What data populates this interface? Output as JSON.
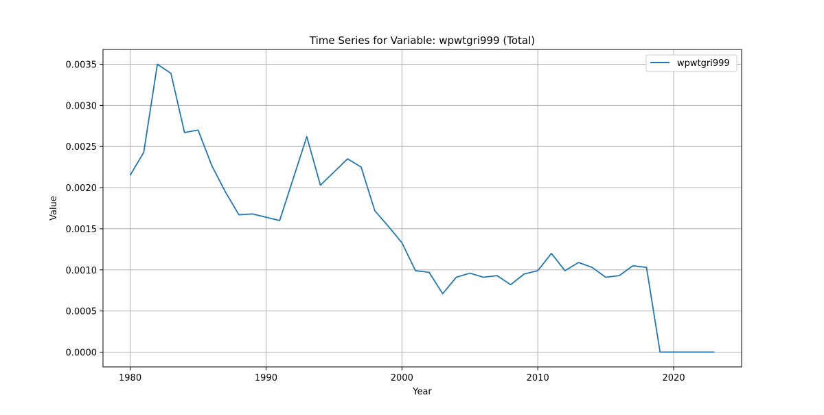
{
  "chart_data": {
    "type": "line",
    "title": "Time Series for Variable: wpwtgri999 (Total)",
    "xlabel": "Year",
    "ylabel": "Value",
    "xlim": [
      1978,
      2025
    ],
    "ylim": [
      -0.00018,
      0.00368
    ],
    "x_ticks": [
      1980,
      1990,
      2000,
      2010,
      2020
    ],
    "x_tick_labels": [
      "1980",
      "1990",
      "2000",
      "2010",
      "2020"
    ],
    "y_ticks": [
      0.0,
      0.0005,
      0.001,
      0.0015,
      0.002,
      0.0025,
      0.003,
      0.0035
    ],
    "y_tick_labels": [
      "0.0000",
      "0.0005",
      "0.0010",
      "0.0015",
      "0.0020",
      "0.0025",
      "0.0030",
      "0.0035"
    ],
    "grid": true,
    "legend_position": "top-right",
    "series": [
      {
        "name": "wpwtgri999",
        "color": "#1f77b4",
        "x": [
          1980,
          1981,
          1982,
          1983,
          1984,
          1985,
          1986,
          1987,
          1988,
          1989,
          1990,
          1991,
          1992,
          1993,
          1994,
          1995,
          1996,
          1997,
          1998,
          1999,
          2000,
          2001,
          2002,
          2003,
          2004,
          2005,
          2006,
          2007,
          2008,
          2009,
          2010,
          2011,
          2012,
          2013,
          2014,
          2015,
          2016,
          2017,
          2018,
          2019,
          2020,
          2021,
          2022,
          2023
        ],
        "y": [
          0.00215,
          0.00243,
          0.0035,
          0.00339,
          0.00267,
          0.0027,
          0.00227,
          0.00195,
          0.00167,
          0.00168,
          0.00164,
          0.0016,
          0.00211,
          0.00262,
          0.00203,
          0.00219,
          0.00235,
          0.00225,
          0.00172,
          0.00153,
          0.00133,
          0.00099,
          0.00097,
          0.00071,
          0.00091,
          0.00096,
          0.00091,
          0.00093,
          0.00082,
          0.00095,
          0.00099,
          0.0012,
          0.00099,
          0.00109,
          0.00103,
          0.00091,
          0.00093,
          0.00105,
          0.00103,
          0.0,
          0.0,
          0.0,
          0.0,
          0.0
        ]
      }
    ]
  }
}
